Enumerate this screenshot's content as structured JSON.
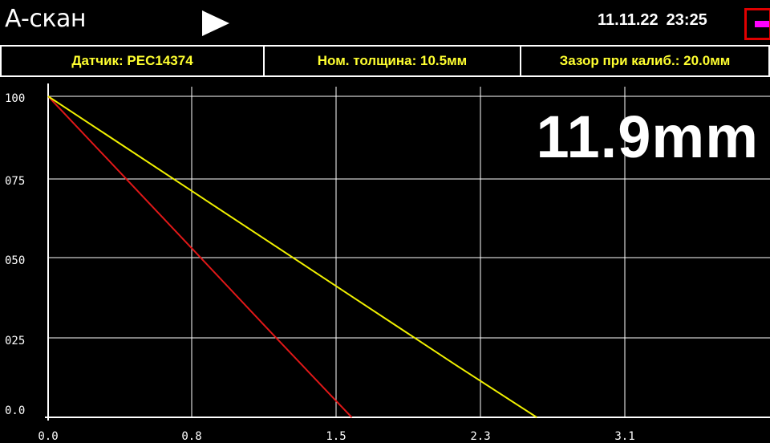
{
  "header": {
    "mode_title": "А-скан",
    "date": "11.11.22",
    "time": "23:25"
  },
  "infobar": {
    "sensor": "Датчик: PEC14374",
    "nominal_thickness": "Ном. толщина: 10.5мм",
    "calib_gap": "Зазор при калиб.: 20.0мм"
  },
  "reading": "11.9mm",
  "chart_data": {
    "type": "line",
    "xlim": [
      0,
      3.9
    ],
    "ylim": [
      0,
      100
    ],
    "x_ticks": [
      "0.0",
      "0.8",
      "1.5",
      "2.3",
      "3.1"
    ],
    "y_ticks": [
      "0.0",
      "025",
      "050",
      "075",
      "100"
    ],
    "grid": true,
    "series": [
      {
        "color": "#e01818",
        "points": [
          [
            0.0,
            100
          ],
          [
            0.4,
            75.6
          ],
          [
            0.8,
            51.2
          ],
          [
            1.2,
            26.7
          ],
          [
            1.64,
            0
          ]
        ]
      },
      {
        "color": "#f0f000",
        "points": [
          [
            0.0,
            100
          ],
          [
            0.8,
            69.6
          ],
          [
            1.6,
            39.2
          ],
          [
            2.2,
            16.4
          ],
          [
            2.64,
            0
          ]
        ]
      }
    ]
  }
}
